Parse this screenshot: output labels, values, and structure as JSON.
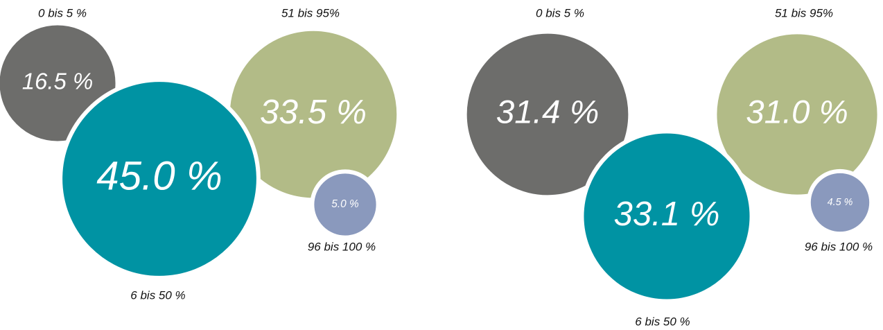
{
  "chart_data": [
    {
      "type": "bubble",
      "categories": [
        "0 bis 5 %",
        "6 bis 50 %",
        "51 bis 95%",
        "96 bis 100 %"
      ],
      "values": [
        16.5,
        45.0,
        33.5,
        5.0
      ],
      "value_labels": [
        "16.5 %",
        "45.0 %",
        "33.5 %",
        "5.0 %"
      ],
      "colors": [
        "#6d6d6b",
        "#0093a3",
        "#b2bb87",
        "#8a99bd"
      ]
    },
    {
      "type": "bubble",
      "categories": [
        "0 bis 5 %",
        "6 bis 50 %",
        "51 bis 95%",
        "96 bis 100 %"
      ],
      "values": [
        31.4,
        33.1,
        31.0,
        4.5
      ],
      "value_labels": [
        "31.4 %",
        "33.1 %",
        "31.0 %",
        "4.5 %"
      ],
      "colors": [
        "#6d6d6b",
        "#0093a3",
        "#b2bb87",
        "#8a99bd"
      ]
    }
  ]
}
